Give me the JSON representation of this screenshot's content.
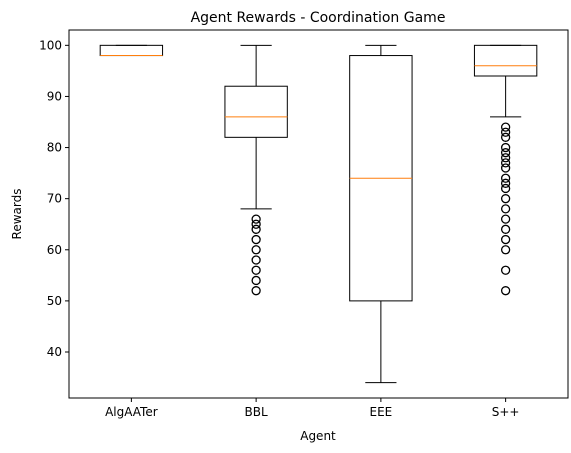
{
  "chart_data": {
    "type": "box",
    "title": "Agent Rewards - Coordination Game",
    "xlabel": "Agent",
    "ylabel": "Rewards",
    "ylim": [
      31,
      103
    ],
    "yticks": [
      40,
      50,
      60,
      70,
      80,
      90,
      100
    ],
    "grid": false,
    "colors": {
      "box": "#000000",
      "median": "#ff7f0e",
      "background": "#ffffff"
    },
    "categories": [
      "AlgAATer",
      "BBL",
      "EEE",
      "S++"
    ],
    "boxes": [
      {
        "name": "AlgAATer",
        "whisker_low": 98,
        "q1": 98,
        "median": 98,
        "q3": 100,
        "whisker_high": 100,
        "outliers": []
      },
      {
        "name": "BBL",
        "whisker_low": 68,
        "q1": 82,
        "median": 86,
        "q3": 92,
        "whisker_high": 100,
        "outliers": [
          66,
          65,
          64,
          62,
          60,
          58,
          56,
          54,
          52
        ]
      },
      {
        "name": "EEE",
        "whisker_low": 34,
        "q1": 50,
        "median": 74,
        "q3": 98,
        "whisker_high": 100,
        "outliers": []
      },
      {
        "name": "S++",
        "whisker_low": 86,
        "q1": 94,
        "median": 96,
        "q3": 100,
        "whisker_high": 100,
        "outliers": [
          84,
          83,
          82,
          80,
          79,
          78,
          77,
          76,
          74,
          73,
          72,
          70,
          68,
          66,
          64,
          62,
          60,
          56,
          52
        ]
      }
    ]
  }
}
